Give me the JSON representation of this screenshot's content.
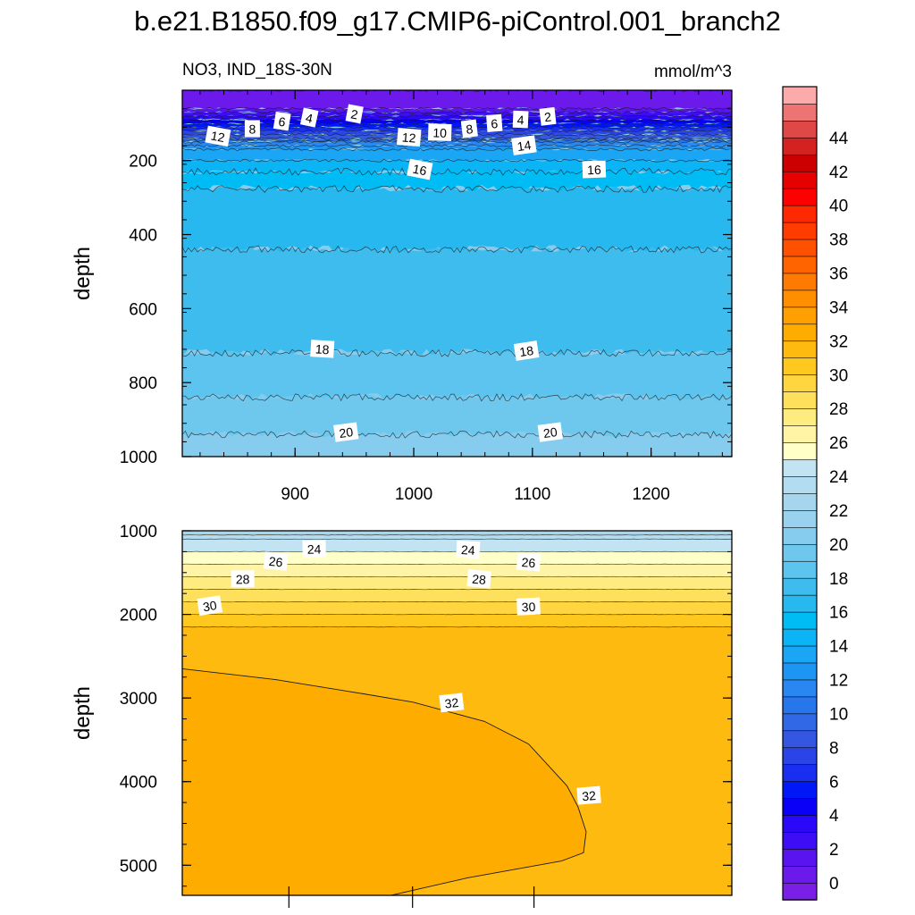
{
  "chart_data": {
    "type": "contour",
    "title": "b.e21.B1850.f09_g17.CMIP6-piControl.001_branch2",
    "variable": "NO3, IND_18S-30N",
    "units": "mmol/m^3",
    "colorbar": {
      "ticks": [
        "0",
        "2",
        "4",
        "6",
        "8",
        "10",
        "12",
        "14",
        "16",
        "18",
        "20",
        "22",
        "24",
        "26",
        "28",
        "30",
        "32",
        "34",
        "36",
        "38",
        "40",
        "42",
        "44"
      ],
      "levels_min": -1,
      "levels_max": 46,
      "level_step": 1,
      "colors": [
        "#7a1fe6",
        "#6b1aeb",
        "#5a14f0",
        "#3d0df5",
        "#2b08f7",
        "#0a00f7",
        "#0018f7",
        "#1a2ef2",
        "#2a44e8",
        "#3456e0",
        "#3068e6",
        "#2876ec",
        "#2a86f0",
        "#1c96f2",
        "#1aa6f5",
        "#0ab4f5",
        "#00bcf5",
        "#28b8f0",
        "#3ebcee",
        "#5cc4ee",
        "#6ec8ee",
        "#86ccee",
        "#98d2ee",
        "#a6d6ee",
        "#b2dcf0",
        "#c2e4f2",
        "#ffffc8",
        "#fff4a6",
        "#ffec80",
        "#ffe05c",
        "#ffd640",
        "#ffc81e",
        "#ffba10",
        "#ffac00",
        "#ffa000",
        "#ff8e00",
        "#ff7a00",
        "#ff6400",
        "#ff5000",
        "#ff3c00",
        "#ff2800",
        "#ff0000",
        "#e60000",
        "#cc0000",
        "#d42222",
        "#e04848",
        "#ee7474",
        "#fcaaaa"
      ]
    },
    "panels": [
      {
        "name": "upper",
        "xlabel": "",
        "ylabel": "depth",
        "xlim": [
          805,
          1268
        ],
        "ylim": [
          1000,
          10
        ],
        "xticks": [
          900,
          1000,
          1100,
          1200
        ],
        "yticks": [
          200,
          400,
          600,
          800,
          1000
        ],
        "field": {
          "depths": [
            10,
            40,
            60,
            70,
            80,
            90,
            100,
            110,
            120,
            130,
            140,
            150,
            170,
            230,
            300,
            720,
            840,
            940,
            1000
          ],
          "values": [
            0,
            0.5,
            1,
            2,
            3,
            4,
            5,
            6,
            7,
            8,
            9,
            11,
            13,
            15,
            16.5,
            18,
            19,
            20,
            20.5
          ]
        },
        "contour_labels": [
          {
            "text": "2",
            "x": 950,
            "depth": 75
          },
          {
            "text": "4",
            "x": 912,
            "depth": 85
          },
          {
            "text": "6",
            "x": 889,
            "depth": 95
          },
          {
            "text": "8",
            "x": 864,
            "depth": 115
          },
          {
            "text": "12",
            "x": 835,
            "depth": 135
          },
          {
            "text": "12",
            "x": 996,
            "depth": 138
          },
          {
            "text": "10",
            "x": 1022,
            "depth": 125
          },
          {
            "text": "8",
            "x": 1047,
            "depth": 115
          },
          {
            "text": "6",
            "x": 1068,
            "depth": 100
          },
          {
            "text": "4",
            "x": 1090,
            "depth": 90
          },
          {
            "text": "2",
            "x": 1113,
            "depth": 82
          },
          {
            "text": "14",
            "x": 1093,
            "depth": 160
          },
          {
            "text": "16",
            "x": 1005,
            "depth": 225
          },
          {
            "text": "16",
            "x": 1152,
            "depth": 225
          },
          {
            "text": "18",
            "x": 923,
            "depth": 710
          },
          {
            "text": "18",
            "x": 1095,
            "depth": 715
          },
          {
            "text": "20",
            "x": 943,
            "depth": 935
          },
          {
            "text": "20",
            "x": 1115,
            "depth": 935
          }
        ]
      },
      {
        "name": "lower",
        "xlabel": "",
        "ylabel": "depth",
        "ylim": [
          5360,
          1000
        ],
        "yticks": [
          1000,
          2000,
          3000,
          4000,
          5000
        ],
        "field": {
          "depths": [
            1000,
            1050,
            1100,
            1250,
            1400,
            1550,
            1700,
            1850,
            2000,
            2150
          ],
          "values": [
            22,
            23,
            24,
            25,
            26,
            27,
            28,
            29,
            30,
            31
          ]
        },
        "region_32_boundary": [
          [
            0,
            2650
          ],
          [
            0.17,
            2780
          ],
          [
            0.33,
            2950
          ],
          [
            0.42,
            3050
          ],
          [
            0.55,
            3280
          ],
          [
            0.63,
            3550
          ],
          [
            0.7,
            4050
          ],
          [
            0.72,
            4300
          ],
          [
            0.735,
            4600
          ],
          [
            0.73,
            4850
          ],
          [
            0.69,
            4950
          ],
          [
            0.52,
            5150
          ],
          [
            0.38,
            5360
          ],
          [
            0,
            5360
          ]
        ],
        "contour_labels": [
          {
            "text": "24",
            "x": 0.24,
            "depth": 1220
          },
          {
            "text": "24",
            "x": 0.52,
            "depth": 1230
          },
          {
            "text": "26",
            "x": 0.17,
            "depth": 1370
          },
          {
            "text": "26",
            "x": 0.63,
            "depth": 1380
          },
          {
            "text": "28",
            "x": 0.11,
            "depth": 1580
          },
          {
            "text": "28",
            "x": 0.54,
            "depth": 1580
          },
          {
            "text": "30",
            "x": 0.05,
            "depth": 1900
          },
          {
            "text": "30",
            "x": 0.63,
            "depth": 1910
          },
          {
            "text": "32",
            "x": 0.49,
            "depth": 3060
          },
          {
            "text": "32",
            "x": 0.74,
            "depth": 4170
          }
        ]
      }
    ]
  }
}
